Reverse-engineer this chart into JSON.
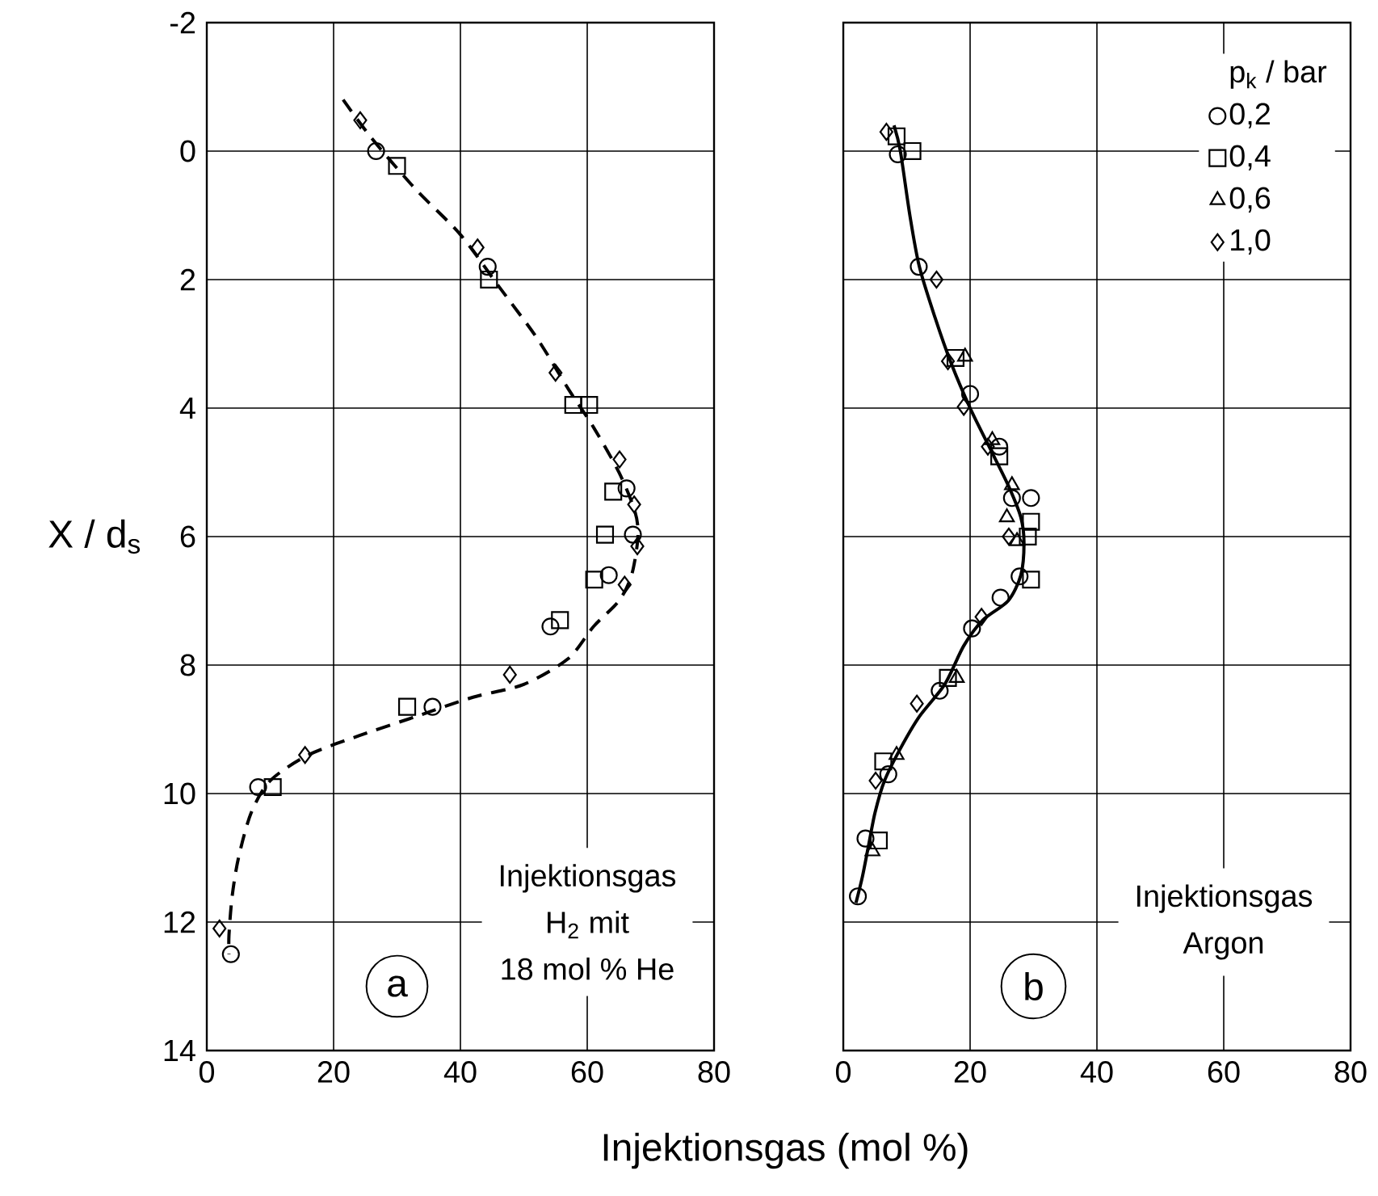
{
  "chart_data": [
    {
      "type": "scatter",
      "xlabel": "Injektionsgas (mol %)",
      "ylabel": "X / d$_{s}$",
      "xlim": [
        0,
        80
      ],
      "ylim": [
        14,
        -2
      ],
      "xticks": [
        0,
        20,
        40,
        60,
        80
      ],
      "yticks": [
        -2,
        0,
        2,
        4,
        6,
        8,
        10,
        12,
        14
      ],
      "grid": true,
      "annotations": [
        "Injektionsgas",
        "H$_{2}$ mit",
        "18 mol % He",
        "a"
      ],
      "series": [
        {
          "color": "#000000",
          "marker": "circle",
          "x": [
            26.7,
            44.3,
            66.2,
            67.2,
            63.4,
            54.2,
            35.6,
            8.1,
            3.8
          ],
          "values": [
            0.0,
            1.8,
            5.25,
            5.97,
            6.6,
            7.4,
            8.65,
            9.9,
            12.5
          ]
        },
        {
          "color": "#000000",
          "marker": "square",
          "x": [
            30,
            44.5,
            57.8,
            60.3,
            64.1,
            62.8,
            61.1,
            55.7,
            31.6,
            10.4
          ],
          "values": [
            0.23,
            2.0,
            3.95,
            3.95,
            5.3,
            5.97,
            6.67,
            7.3,
            8.65,
            9.9
          ]
        },
        {
          "color": "#000000",
          "marker": "diamond",
          "x": [
            24.2,
            42.7,
            55,
            65.1,
            67.4,
            67.9,
            65.9,
            47.8,
            15.5,
            2
          ],
          "values": [
            -0.48,
            1.5,
            3.45,
            4.8,
            5.5,
            6.15,
            6.75,
            8.15,
            9.4,
            12.1
          ]
        },
        {
          "type": "line",
          "color": "#000000",
          "marker": "none",
          "line_style": "dashed",
          "x": [
            21.5,
            26,
            33,
            40,
            46,
            52,
            57,
            61,
            65,
            67.5,
            68,
            67,
            65,
            61,
            57,
            50,
            42,
            33,
            24,
            16,
            10,
            7,
            5,
            4,
            3.5,
            3.5
          ],
          "values": [
            -0.8,
            -0.2,
            0.6,
            1.3,
            2.1,
            2.9,
            3.7,
            4.3,
            5.0,
            5.6,
            6.0,
            6.6,
            7.0,
            7.4,
            7.9,
            8.3,
            8.5,
            8.8,
            9.1,
            9.4,
            9.8,
            10.3,
            11,
            11.6,
            12.2,
            12.5
          ]
        }
      ]
    },
    {
      "type": "scatter",
      "xlim": [
        0,
        80
      ],
      "ylim": [
        14,
        -2
      ],
      "xticks": [
        0,
        20,
        40,
        60,
        80
      ],
      "yticks": [
        -2,
        0,
        2,
        4,
        6,
        8,
        10,
        12,
        14
      ],
      "grid": true,
      "tick_labels": "x",
      "legend": "top right",
      "legend_title": "p$_{k}$ / bar",
      "annotations": [
        "Injektionsgas",
        "Argon",
        "b"
      ],
      "series": [
        {
          "name": "0,2",
          "color": "#000000",
          "marker": "circle",
          "x": [
            8.6,
            11.9,
            20,
            24.6,
            26.6,
            29.6,
            27.8,
            24.8,
            20.3,
            15.2,
            7.1,
            3.5,
            2.3
          ],
          "values": [
            0.05,
            1.8,
            3.78,
            4.6,
            5.4,
            5.4,
            6.62,
            6.95,
            7.43,
            8.4,
            9.7,
            10.7,
            11.6
          ]
        },
        {
          "name": "0,4",
          "color": "#000000",
          "marker": "square",
          "x": [
            8.4,
            10.9,
            17.7,
            24.6,
            29.6,
            29.1,
            29.6,
            16.5,
            6.3,
            5.6
          ],
          "values": [
            -0.23,
            0.0,
            3.22,
            4.75,
            5.77,
            6.0,
            6.67,
            8.2,
            9.5,
            10.73
          ]
        },
        {
          "name": "0,6",
          "color": "#000000",
          "marker": "triangle",
          "x": [
            19.2,
            23.5,
            26.6,
            25.8,
            27.4,
            17.9,
            8.4,
            4.6
          ],
          "values": [
            3.2,
            4.5,
            5.2,
            5.7,
            6.07,
            8.2,
            9.4,
            10.9
          ]
        },
        {
          "name": "1,0",
          "color": "#000000",
          "marker": "diamond",
          "x": [
            6.8,
            14.7,
            16.5,
            19,
            22.8,
            26.1,
            21.8,
            11.6,
            5.1
          ],
          "values": [
            -0.3,
            2.0,
            3.27,
            3.98,
            4.6,
            6.0,
            7.25,
            8.6,
            9.8
          ]
        },
        {
          "type": "line",
          "color": "#000000",
          "marker": "none",
          "line_style": "solid",
          "x": [
            8,
            9,
            10.5,
            12,
            14.5,
            17,
            20,
            23,
            26,
            28,
            28.5,
            28,
            26,
            22,
            19,
            16,
            12,
            9,
            6.5,
            5,
            4,
            3,
            2
          ],
          "values": [
            -0.4,
            0,
            1,
            1.8,
            2.6,
            3.3,
            4,
            4.6,
            5.2,
            5.7,
            6.1,
            6.6,
            7,
            7.3,
            7.7,
            8.3,
            8.8,
            9.3,
            9.8,
            10.3,
            10.8,
            11.3,
            11.7
          ]
        }
      ]
    }
  ]
}
